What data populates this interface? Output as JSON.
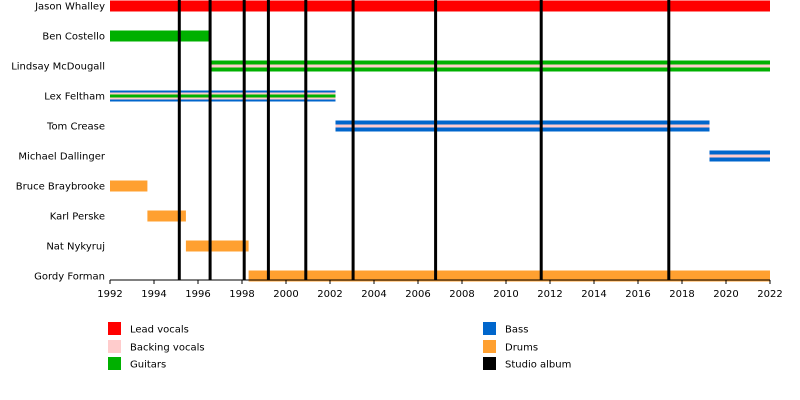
{
  "chart_data": {
    "type": "timeline",
    "title": "",
    "xlim": [
      1992,
      2022
    ],
    "x_ticks": [
      "1992",
      "1994",
      "1996",
      "1998",
      "2000",
      "2002",
      "2004",
      "2006",
      "2008",
      "2010",
      "2012",
      "2014",
      "2016",
      "2018",
      "2020",
      "2022"
    ],
    "members": [
      {
        "name": "Jason Whalley",
        "spans": [
          {
            "roles": [
              "Lead vocals"
            ],
            "start": 1992.0,
            "end": 2022.0
          }
        ]
      },
      {
        "name": "Ben Costello",
        "spans": [
          {
            "roles": [
              "Guitars"
            ],
            "start": 1992.0,
            "end": 1996.55
          }
        ]
      },
      {
        "name": "Lindsay McDougall",
        "spans": [
          {
            "roles": [
              "Guitars",
              "Backing vocals"
            ],
            "start": 1996.55,
            "end": 2022.0
          }
        ]
      },
      {
        "name": "Lex Feltham",
        "spans": [
          {
            "roles": [
              "Bass",
              "Backing vocals",
              "Guitars"
            ],
            "start": 1992.0,
            "end": 2002.25
          }
        ]
      },
      {
        "name": "Tom Crease",
        "spans": [
          {
            "roles": [
              "Bass",
              "Backing vocals"
            ],
            "start": 2002.25,
            "end": 2019.25
          }
        ]
      },
      {
        "name": "Michael Dallinger",
        "spans": [
          {
            "roles": [
              "Bass",
              "Backing vocals"
            ],
            "start": 2019.25,
            "end": 2022.0
          }
        ]
      },
      {
        "name": "Bruce Braybrooke",
        "spans": [
          {
            "roles": [
              "Drums"
            ],
            "start": 1992.0,
            "end": 1993.7
          }
        ]
      },
      {
        "name": "Karl Perske",
        "spans": [
          {
            "roles": [
              "Drums"
            ],
            "start": 1993.7,
            "end": 1995.45
          }
        ]
      },
      {
        "name": "Nat Nykyruj",
        "spans": [
          {
            "roles": [
              "Drums"
            ],
            "start": 1995.45,
            "end": 1998.3
          }
        ]
      },
      {
        "name": "Gordy Forman",
        "spans": [
          {
            "roles": [
              "Drums"
            ],
            "start": 1998.3,
            "end": 2022.0
          }
        ]
      }
    ],
    "studio_albums": [
      1995.15,
      1996.55,
      1998.1,
      1999.2,
      2000.9,
      2003.05,
      2006.8,
      2011.6,
      2017.4
    ],
    "legend": [
      {
        "label": "Lead vocals",
        "color": "#ff0000"
      },
      {
        "label": "Backing vocals",
        "color": "#ffcccc"
      },
      {
        "label": "Guitars",
        "color": "#00b000"
      },
      {
        "label": "Bass",
        "color": "#0066cc"
      },
      {
        "label": "Drums",
        "color": "#ffa030"
      },
      {
        "label": "Studio album",
        "color": "#000000"
      }
    ]
  }
}
